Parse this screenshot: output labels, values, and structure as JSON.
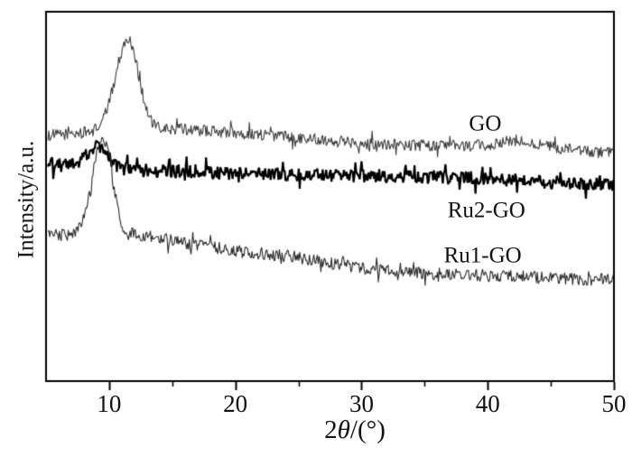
{
  "figure": {
    "background_color": "#ffffff",
    "axis_color": "#000000"
  },
  "chart_data": {
    "type": "line",
    "title": "",
    "xlabel": "2θ/(°)",
    "xlabel_parts": [
      "2",
      "θ",
      "/(°)"
    ],
    "ylabel": "Intensity/a.u.",
    "xlim": [
      5,
      50
    ],
    "ylim_note": "intensity in arbitrary units, no y ticks shown",
    "x_major_ticks": [
      10,
      20,
      30,
      40,
      50
    ],
    "x_minor_ticks": [
      15,
      25,
      35,
      45
    ],
    "grid": false,
    "legend_position": "inline labels next to curves",
    "series": [
      {
        "name": "GO",
        "color": "#3d3d3d",
        "line_width": 1.1,
        "noise": 0.016,
        "baseline": [
          [
            5,
            0.665
          ],
          [
            8,
            0.672
          ],
          [
            12,
            0.68
          ],
          [
            16,
            0.682
          ],
          [
            20,
            0.672
          ],
          [
            25,
            0.66
          ],
          [
            30,
            0.645
          ],
          [
            35,
            0.638
          ],
          [
            40,
            0.636
          ],
          [
            44,
            0.63
          ],
          [
            47,
            0.624
          ],
          [
            50,
            0.616
          ]
        ],
        "peaks": [
          {
            "center": 11.5,
            "height": 0.245,
            "sigma_left": 1.0,
            "sigma_right": 0.85
          },
          {
            "center": 42.8,
            "height": 0.018,
            "sigma_left": 1.5,
            "sigma_right": 1.5
          }
        ],
        "label": {
          "x": 39.8,
          "y": 0.697
        }
      },
      {
        "name": "Ru2-GO",
        "color": "#000000",
        "line_width": 2.2,
        "noise": 0.019,
        "baseline": [
          [
            5,
            0.587
          ],
          [
            8,
            0.582
          ],
          [
            12,
            0.572
          ],
          [
            16,
            0.567
          ],
          [
            20,
            0.562
          ],
          [
            25,
            0.559
          ],
          [
            30,
            0.557
          ],
          [
            35,
            0.553
          ],
          [
            40,
            0.548
          ],
          [
            45,
            0.538
          ],
          [
            50,
            0.531
          ]
        ],
        "peaks": [
          {
            "center": 9.1,
            "height": 0.055,
            "sigma_left": 0.85,
            "sigma_right": 0.75
          }
        ],
        "label": {
          "x": 39.9,
          "y": 0.463
        }
      },
      {
        "name": "Ru1-GO",
        "color": "#2b2b2b",
        "line_width": 1.1,
        "noise": 0.017,
        "baseline": [
          [
            5,
            0.393
          ],
          [
            8,
            0.4
          ],
          [
            12,
            0.397
          ],
          [
            14,
            0.386
          ],
          [
            16,
            0.374
          ],
          [
            18,
            0.364
          ],
          [
            20,
            0.352
          ],
          [
            23,
            0.343
          ],
          [
            25,
            0.335
          ],
          [
            27,
            0.323
          ],
          [
            30,
            0.306
          ],
          [
            33,
            0.297
          ],
          [
            35,
            0.291
          ],
          [
            40,
            0.286
          ],
          [
            45,
            0.279
          ],
          [
            50,
            0.274
          ]
        ],
        "peaks": [
          {
            "center": 9.5,
            "height": 0.262,
            "sigma_left": 0.78,
            "sigma_right": 0.72
          }
        ],
        "label": {
          "x": 39.6,
          "y": 0.34
        }
      }
    ]
  }
}
